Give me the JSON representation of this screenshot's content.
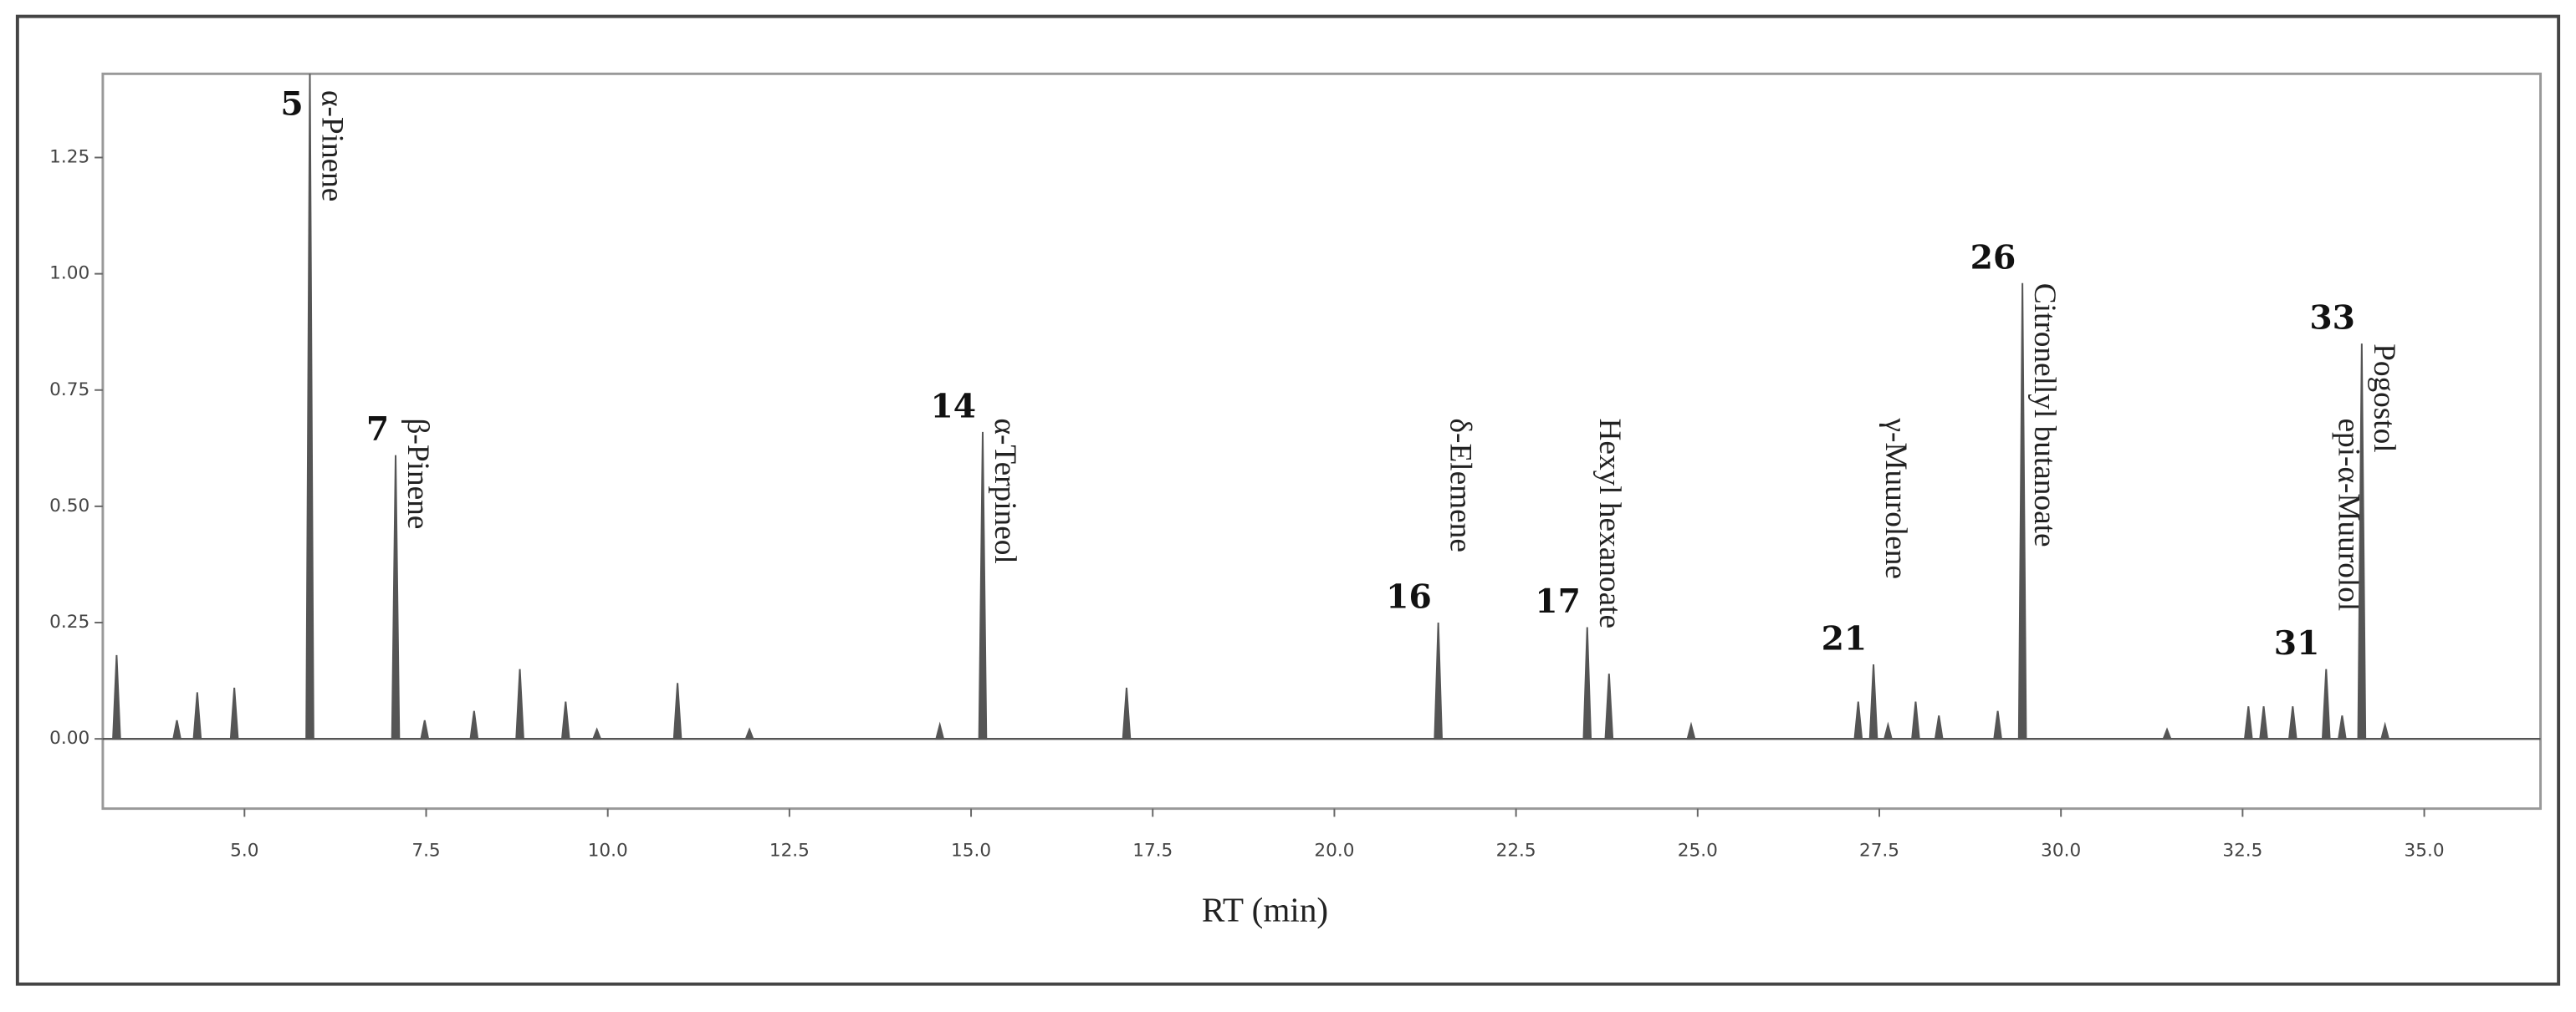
{
  "chart_data": {
    "type": "chromatogram",
    "x_label": "RT (min)",
    "x": [
      3.24,
      4.07,
      4.35,
      4.86,
      5.9,
      7.08,
      7.48,
      8.16,
      8.79,
      9.42,
      9.85,
      10.96,
      11.95,
      14.57,
      15.16,
      17.14,
      21.43,
      23.48,
      23.78,
      24.91,
      27.21,
      27.42,
      27.62,
      28.0,
      28.32,
      29.13,
      29.47,
      31.46,
      32.58,
      32.79,
      33.19,
      33.65,
      33.87,
      34.14,
      34.46
    ],
    "values": [
      0.18,
      0.04,
      0.1,
      0.11,
      1.43,
      0.61,
      0.04,
      0.06,
      0.15,
      0.08,
      0.02,
      0.12,
      0.02,
      0.03,
      0.66,
      0.11,
      0.25,
      0.24,
      0.14,
      0.03,
      0.08,
      0.16,
      0.03,
      0.08,
      0.05,
      0.06,
      0.98,
      0.02,
      0.07,
      0.07,
      0.07,
      0.15,
      0.05,
      0.85,
      0.03
    ],
    "peak_labels": [
      null,
      null,
      null,
      null,
      "5",
      "7",
      null,
      null,
      null,
      null,
      null,
      null,
      null,
      null,
      "14",
      null,
      "16",
      "17",
      null,
      null,
      null,
      "21",
      null,
      null,
      null,
      null,
      "26",
      null,
      null,
      null,
      null,
      "31",
      null,
      "33",
      null
    ],
    "peak_names": [
      null,
      null,
      null,
      null,
      "α-Pinene",
      "β-Pinene",
      null,
      null,
      null,
      null,
      null,
      null,
      null,
      null,
      "α-Terpineol",
      null,
      "δ-Elemene",
      "Hexyl hexanoate",
      null,
      null,
      null,
      "γ-Muurolene",
      null,
      null,
      null,
      null,
      "Citronellyl butanoate",
      null,
      null,
      null,
      null,
      "epi-α-Muurolol",
      null,
      "Pogostol",
      null
    ],
    "color": "#555555",
    "xlim": [
      3.05,
      36.6
    ],
    "xticks": [
      {
        "value": 5,
        "label": "5.0"
      },
      {
        "value": 7.5,
        "label": "7.5"
      },
      {
        "value": 10,
        "label": "10.0"
      },
      {
        "value": 12.5,
        "label": "12.5"
      },
      {
        "value": 15,
        "label": "15.0"
      },
      {
        "value": 17.5,
        "label": "17.5"
      },
      {
        "value": 20,
        "label": "20.0"
      },
      {
        "value": 22.5,
        "label": "22.5"
      },
      {
        "value": 25,
        "label": "25.0"
      },
      {
        "value": 27.5,
        "label": "27.5"
      },
      {
        "value": 30,
        "label": "30.0"
      },
      {
        "value": 32.5,
        "label": "32.5"
      },
      {
        "value": 35,
        "label": "35.0"
      }
    ],
    "ylim": [
      -0.15,
      1.43
    ],
    "yticks": [
      {
        "value": 0,
        "label": "0.00"
      },
      {
        "value": 0.25,
        "label": "0.25"
      },
      {
        "value": 0.5,
        "label": "0.50"
      },
      {
        "value": 0.75,
        "label": "0.75"
      },
      {
        "value": 1,
        "label": "1.00"
      },
      {
        "value": 1.25,
        "label": "1.25"
      }
    ],
    "grid": false
  }
}
